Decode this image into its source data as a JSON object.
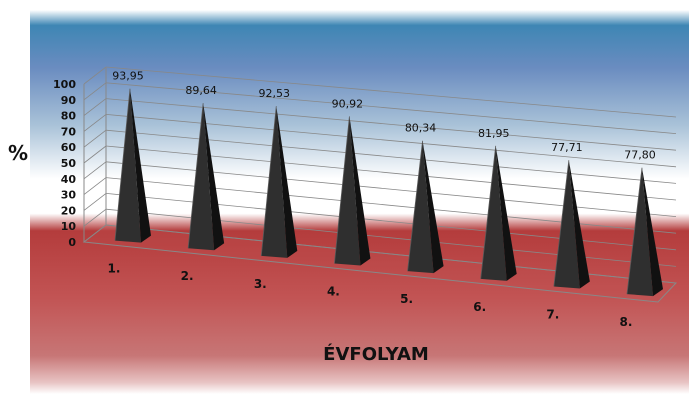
{
  "chart_data": {
    "type": "bar",
    "style": "3d-pyramid",
    "categories": [
      "1.",
      "2.",
      "3.",
      "4.",
      "5.",
      "6.",
      "7.",
      "8."
    ],
    "series": [
      {
        "values": [
          93.95,
          89.64,
          92.53,
          90.92,
          80.34,
          81.95,
          77.71,
          77.8
        ]
      }
    ],
    "data_labels": [
      "93,95",
      "89,64",
      "92,53",
      "90,92",
      "80,34",
      "81,95",
      "77,71",
      "77,80"
    ],
    "ylabel": "%",
    "xlabel": "ÉVFOLYAM",
    "ylim": [
      0,
      100
    ],
    "yticks": [
      0,
      10,
      20,
      30,
      40,
      50,
      60,
      70,
      80,
      90,
      100
    ],
    "grid": true,
    "legend": "none",
    "colors": {
      "bar": "#2f2f2f",
      "bar_dark": "#111111",
      "bar_light": "#5a5a5a",
      "grid": "#888888"
    }
  }
}
